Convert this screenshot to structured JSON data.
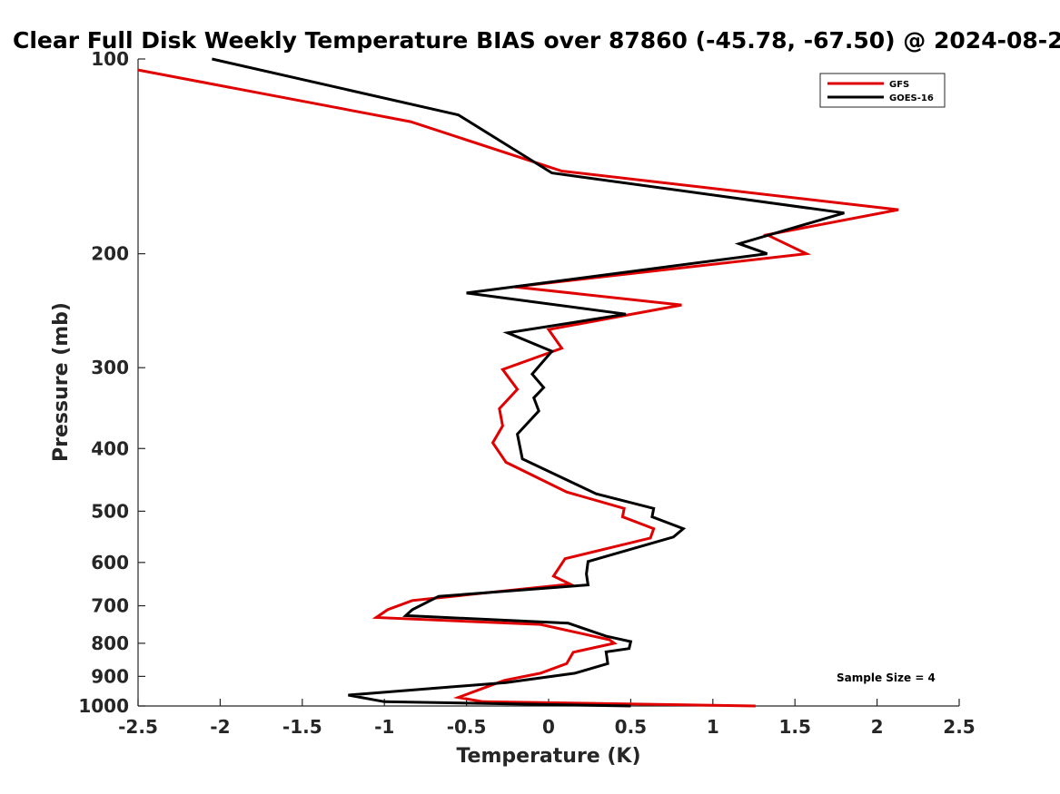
{
  "chart_data": {
    "type": "line",
    "title": "Clear Full Disk Weekly Temperature BIAS over 87860 (-45.78, -67.50) @ 2024-08-2",
    "xlabel": "Temperature (K)",
    "ylabel": "Pressure (mb)",
    "xlim": [
      -2.5,
      2.5
    ],
    "ylim": [
      100,
      1000
    ],
    "y_scale": "log",
    "y_reversed": true,
    "x_ticks": [
      -2.5,
      -2,
      -1.5,
      -1,
      -0.5,
      0,
      0.5,
      1,
      1.5,
      2,
      2.5
    ],
    "x_tick_labels": [
      "-2.5",
      "-2",
      "-1.5",
      "-1",
      "-0.5",
      "0",
      "0.5",
      "1",
      "1.5",
      "2",
      "2.5"
    ],
    "y_ticks": [
      100,
      200,
      300,
      400,
      500,
      600,
      700,
      800,
      900,
      1000
    ],
    "y_tick_labels": [
      "100",
      "200",
      "300",
      "400",
      "500",
      "600",
      "700",
      "800",
      "900",
      "1000"
    ],
    "legend_position": "top-right",
    "grid": false,
    "annotation": "Sample Size = 4",
    "series": [
      {
        "name": "GFS",
        "color": "#e00000",
        "points": [
          [
            -2.5,
            104
          ],
          [
            -0.84,
            125
          ],
          [
            0.08,
            149
          ],
          [
            2.13,
            171
          ],
          [
            1.33,
            187
          ],
          [
            1.57,
            200
          ],
          [
            -0.21,
            225
          ],
          [
            0.81,
            240
          ],
          [
            0.0,
            262
          ],
          [
            0.08,
            280
          ],
          [
            -0.28,
            302
          ],
          [
            -0.19,
            324
          ],
          [
            -0.3,
            347
          ],
          [
            -0.28,
            369
          ],
          [
            -0.34,
            392
          ],
          [
            -0.26,
            420
          ],
          [
            0.11,
            467
          ],
          [
            0.46,
            495
          ],
          [
            0.45,
            510
          ],
          [
            0.64,
            532
          ],
          [
            0.62,
            550
          ],
          [
            0.1,
            592
          ],
          [
            0.03,
            630
          ],
          [
            0.13,
            648
          ],
          [
            -0.83,
            687
          ],
          [
            -0.98,
            710
          ],
          [
            -1.05,
            730
          ],
          [
            -0.05,
            748
          ],
          [
            0.37,
            790
          ],
          [
            0.4,
            800
          ],
          [
            0.15,
            826
          ],
          [
            0.11,
            860
          ],
          [
            -0.05,
            890
          ],
          [
            -0.27,
            913
          ],
          [
            -0.55,
            970
          ],
          [
            -0.4,
            985
          ],
          [
            1.26,
            1000
          ]
        ]
      },
      {
        "name": "GOES-16",
        "color": "#000000",
        "points": [
          [
            -2.05,
            100
          ],
          [
            -0.55,
            122
          ],
          [
            0.02,
            150
          ],
          [
            1.8,
            173
          ],
          [
            1.16,
            193
          ],
          [
            1.33,
            200
          ],
          [
            -0.5,
            230
          ],
          [
            0.47,
            248
          ],
          [
            -0.25,
            265
          ],
          [
            0.02,
            283
          ],
          [
            -0.1,
            307
          ],
          [
            -0.03,
            322
          ],
          [
            -0.09,
            334
          ],
          [
            -0.06,
            350
          ],
          [
            -0.19,
            380
          ],
          [
            -0.16,
            415
          ],
          [
            0.29,
            470
          ],
          [
            0.64,
            495
          ],
          [
            0.63,
            510
          ],
          [
            0.82,
            532
          ],
          [
            0.76,
            548
          ],
          [
            0.24,
            598
          ],
          [
            0.23,
            625
          ],
          [
            0.24,
            650
          ],
          [
            -0.67,
            677
          ],
          [
            -0.83,
            710
          ],
          [
            -0.87,
            725
          ],
          [
            0.12,
            745
          ],
          [
            0.35,
            780
          ],
          [
            0.5,
            795
          ],
          [
            0.49,
            815
          ],
          [
            0.35,
            825
          ],
          [
            0.36,
            860
          ],
          [
            0.16,
            890
          ],
          [
            -0.26,
            920
          ],
          [
            -1.22,
            962
          ],
          [
            -1.0,
            985
          ],
          [
            0.5,
            1000
          ]
        ]
      }
    ]
  }
}
